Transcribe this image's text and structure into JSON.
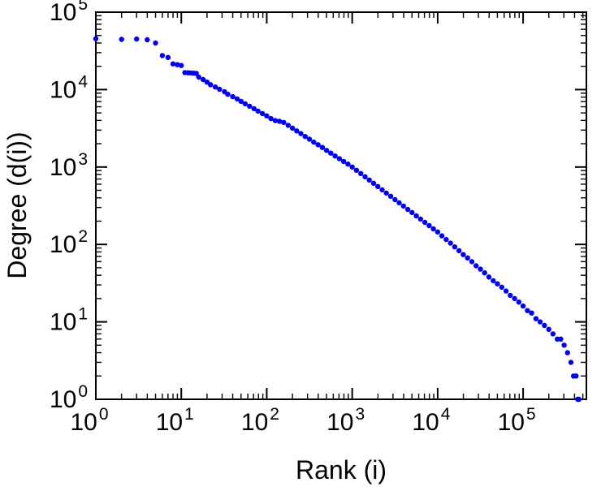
{
  "figure": {
    "background": "#ffffff"
  },
  "chart_data": {
    "type": "scatter",
    "title": "",
    "xlabel": "Rank (i)",
    "ylabel": "Degree (d(i))",
    "x_scale": "log",
    "y_scale": "log",
    "xlim": [
      1,
      550000
    ],
    "ylim": [
      1,
      100000
    ],
    "x_tick_exponents": [
      0,
      1,
      2,
      3,
      4,
      5
    ],
    "y_tick_exponents": [
      0,
      1,
      2,
      3,
      4,
      5
    ],
    "tick_base": "10",
    "grid": "off",
    "legend": "none",
    "marker_color": "#0000ee",
    "frame_color": "#000000",
    "points": [
      [
        1,
        45500
      ],
      [
        2,
        44500
      ],
      [
        3,
        45000
      ],
      [
        4,
        44000
      ],
      [
        5,
        40000
      ],
      [
        6,
        27500
      ],
      [
        7,
        26000
      ],
      [
        8,
        21500
      ],
      [
        9,
        21000
      ],
      [
        10,
        20500
      ],
      [
        11,
        16600
      ],
      [
        12,
        16500
      ],
      [
        13,
        16400
      ],
      [
        14,
        16300
      ],
      [
        15,
        16200
      ],
      [
        16,
        14500
      ],
      [
        18,
        13500
      ],
      [
        20,
        12500
      ],
      [
        22,
        11600
      ],
      [
        25,
        10800
      ],
      [
        28,
        10100
      ],
      [
        32,
        9400
      ],
      [
        35,
        8700
      ],
      [
        40,
        8100
      ],
      [
        45,
        7570
      ],
      [
        50,
        7050
      ],
      [
        56,
        6550
      ],
      [
        63,
        6100
      ],
      [
        71,
        5670
      ],
      [
        79,
        5280
      ],
      [
        89,
        4910
      ],
      [
        100,
        4570
      ],
      [
        112,
        4220
      ],
      [
        126,
        3980
      ],
      [
        141,
        3890
      ],
      [
        158,
        3760
      ],
      [
        178,
        3460
      ],
      [
        200,
        3180
      ],
      [
        224,
        2930
      ],
      [
        251,
        2700
      ],
      [
        282,
        2480
      ],
      [
        316,
        2290
      ],
      [
        355,
        2100
      ],
      [
        398,
        1940
      ],
      [
        447,
        1790
      ],
      [
        501,
        1640
      ],
      [
        562,
        1510
      ],
      [
        631,
        1390
      ],
      [
        708,
        1280
      ],
      [
        794,
        1180
      ],
      [
        891,
        1090
      ],
      [
        1000,
        1000
      ],
      [
        1122,
        908
      ],
      [
        1259,
        824
      ],
      [
        1413,
        748
      ],
      [
        1585,
        679
      ],
      [
        1778,
        617
      ],
      [
        1995,
        560
      ],
      [
        2239,
        508
      ],
      [
        2512,
        461
      ],
      [
        2818,
        419
      ],
      [
        3162,
        380
      ],
      [
        3548,
        345
      ],
      [
        3981,
        313
      ],
      [
        4467,
        284
      ],
      [
        5012,
        258
      ],
      [
        5623,
        234
      ],
      [
        6310,
        213
      ],
      [
        7079,
        193
      ],
      [
        7943,
        175
      ],
      [
        8913,
        159
      ],
      [
        10000,
        145
      ],
      [
        11220,
        129
      ],
      [
        12589,
        116
      ],
      [
        14125,
        104
      ],
      [
        15849,
        93
      ],
      [
        17783,
        83
      ],
      [
        19953,
        74
      ],
      [
        22387,
        67
      ],
      [
        25119,
        60
      ],
      [
        28184,
        53
      ],
      [
        31623,
        48
      ],
      [
        35481,
        43
      ],
      [
        39811,
        38
      ],
      [
        44668,
        34
      ],
      [
        50119,
        31
      ],
      [
        56234,
        28
      ],
      [
        63096,
        25
      ],
      [
        70795,
        22
      ],
      [
        79433,
        20
      ],
      [
        89125,
        18
      ],
      [
        100000,
        16
      ],
      [
        112202,
        14
      ],
      [
        125893,
        13
      ],
      [
        141254,
        11
      ],
      [
        158489,
        10
      ],
      [
        177828,
        9
      ],
      [
        199526,
        8
      ],
      [
        223872,
        7
      ],
      [
        251189,
        6
      ],
      [
        275423,
        6
      ],
      [
        302000,
        5
      ],
      [
        331131,
        4
      ],
      [
        363078,
        3
      ],
      [
        389045,
        2
      ],
      [
        416869,
        2
      ],
      [
        436516,
        1
      ],
      [
        450000,
        1
      ]
    ]
  }
}
